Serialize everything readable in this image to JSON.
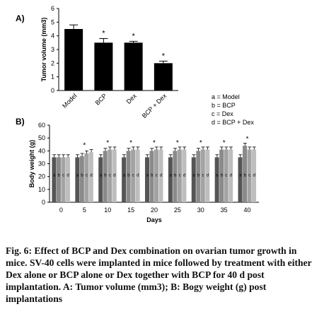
{
  "caption": "Fig. 6: Effect of BCP and Dex combination on ovarian tumor growth in mice. SV-40 cells were implanted in mice followed by treatment with either Dex alone or BCP alone or Dex together with BCP for 40 d post implantation. A: Tumor volume (mm3); B: Bogy weight (g) post implantations",
  "legend": {
    "items": [
      "a = Model",
      "b = BCP",
      "c = Dex",
      "d = BCP + Dex"
    ]
  },
  "chart_data": [
    {
      "panel": "A)",
      "type": "bar",
      "ylabel": "Tumor volume (mm3)",
      "xlabel": "",
      "categories": [
        "Model",
        "BCP",
        "Dex",
        "BCP + Dex"
      ],
      "values": [
        4.5,
        3.5,
        3.5,
        2.0
      ],
      "errors": [
        0.3,
        0.3,
        0.1,
        0.15
      ],
      "significance": [
        "",
        "*",
        "*",
        "*"
      ],
      "ylim": [
        0,
        6
      ],
      "yticks": [
        0,
        1,
        2,
        3,
        4,
        5,
        6
      ],
      "colors": [
        "#000000"
      ],
      "grid": false
    },
    {
      "panel": "B)",
      "type": "bar",
      "ylabel": "Body weight (g)",
      "xlabel": "Days",
      "categories": [
        "0",
        "5",
        "10",
        "15",
        "20",
        "25",
        "30",
        "35",
        "40"
      ],
      "bar_letters": [
        "a",
        "b",
        "c",
        "d"
      ],
      "series": [
        {
          "values": [
            35,
            35,
            35,
            35,
            35,
            35,
            35,
            35,
            35
          ],
          "color": "#555555"
        },
        {
          "values": [
            35,
            36,
            40,
            40,
            40,
            40,
            40,
            41,
            44
          ],
          "color": "#8a8a8a"
        },
        {
          "values": [
            35,
            38,
            41,
            41,
            41,
            41,
            41,
            41,
            41
          ],
          "color": "#a3a3a3"
        },
        {
          "values": [
            35,
            39,
            41,
            41,
            41,
            41,
            41,
            41,
            41
          ],
          "color": "#bdbdbd"
        }
      ],
      "errors": 2,
      "significance": [
        "",
        "*",
        "*",
        "*",
        "*",
        "*",
        "*",
        "*",
        "*"
      ],
      "ylim": [
        0,
        60
      ],
      "yticks": [
        0,
        10,
        20,
        30,
        40,
        50,
        60
      ],
      "grid": false
    }
  ]
}
